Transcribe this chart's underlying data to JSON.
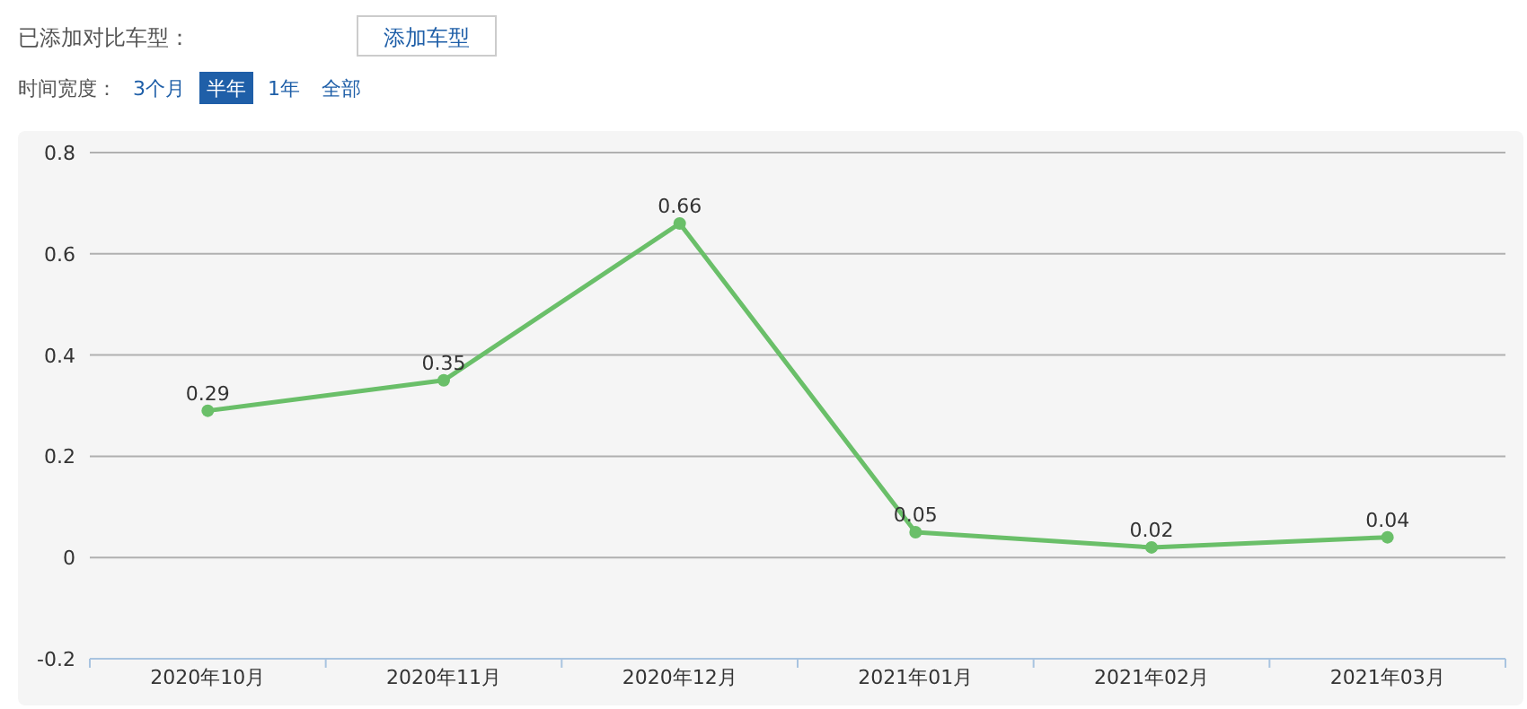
{
  "chart_data": {
    "type": "line",
    "categories": [
      "2020年10月",
      "2020年11月",
      "2020年12月",
      "2021年01月",
      "2021年02月",
      "2021年03月"
    ],
    "series": [
      {
        "color": "#6abf69",
        "values": [
          0.29,
          0.35,
          0.66,
          0.05,
          0.02,
          0.04
        ]
      }
    ],
    "ylim": [
      -0.2,
      0.8
    ],
    "yticks": [
      -0.2,
      0,
      0.2,
      0.4,
      0.6,
      0.8
    ],
    "grid": "y",
    "marker": "circle",
    "line_style": "solid",
    "data_labels": true,
    "annotations": [
      "已添加对比车型：",
      "添加车型",
      "时间宽度：",
      "3个月",
      "半年",
      "1年",
      "全部"
    ]
  }
}
